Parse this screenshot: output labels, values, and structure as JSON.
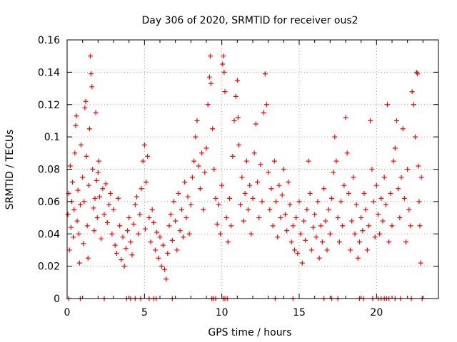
{
  "chart_data": {
    "type": "scatter",
    "title": "Day 306 of 2020, SRMTID for receiver ous2",
    "xlabel": "GPS time / hours",
    "ylabel": "SRMTID / TECUs",
    "xlim": [
      0,
      24
    ],
    "ylim": [
      0,
      0.16
    ],
    "xticks": [
      0,
      5,
      10,
      15,
      20
    ],
    "xtick_labels": [
      "0",
      "5",
      "10",
      "15",
      "20"
    ],
    "yticks": [
      0,
      0.02,
      0.04,
      0.06,
      0.08,
      0.1,
      0.12,
      0.14,
      0.16
    ],
    "ytick_labels": [
      "0",
      "0.02",
      "0.04",
      "0.06",
      "0.08",
      "0.1",
      "0.12",
      "0.14",
      "0.16"
    ],
    "grid": true,
    "marker": "plus",
    "color": "#ff0000",
    "series": [
      {
        "name": "SRMTID",
        "points": [
          [
            0.05,
            0.052
          ],
          [
            0.1,
            0.065
          ],
          [
            0.15,
            0.03
          ],
          [
            0.2,
            0.082
          ],
          [
            0.25,
            0.044
          ],
          [
            0.3,
            0.06
          ],
          [
            0.35,
            0.072
          ],
          [
            0.4,
            0.038
          ],
          [
            0.45,
            0.055
          ],
          [
            0.5,
            0.09
          ],
          [
            0.55,
            0.107
          ],
          [
            0.6,
            0.113
          ],
          [
            0.65,
            0.048
          ],
          [
            0.7,
            0.067
          ],
          [
            0.75,
            0.04
          ],
          [
            0.8,
            0.022
          ],
          [
            0.85,
            0.058
          ],
          [
            0.9,
            0.095
          ],
          [
            1.0,
            0.075
          ],
          [
            1.05,
            0.034
          ],
          [
            1.1,
            0.06
          ],
          [
            1.15,
            0.118
          ],
          [
            1.2,
            0.122
          ],
          [
            1.25,
            0.088
          ],
          [
            1.3,
            0.045
          ],
          [
            1.35,
            0.025
          ],
          [
            1.4,
            0.07
          ],
          [
            1.45,
            0.105
          ],
          [
            1.5,
            0.15
          ],
          [
            1.55,
            0.139
          ],
          [
            1.6,
            0.131
          ],
          [
            1.65,
            0.08
          ],
          [
            1.7,
            0.056
          ],
          [
            1.75,
            0.042
          ],
          [
            1.8,
            0.062
          ],
          [
            1.85,
            0.115
          ],
          [
            1.9,
            0.073
          ],
          [
            1.95,
            0.05
          ],
          [
            2.0,
            0.078
          ],
          [
            2.05,
            0.085
          ],
          [
            2.1,
            0.063
          ],
          [
            2.2,
            0.037
          ],
          [
            2.3,
            0.068
          ],
          [
            2.4,
            0.052
          ],
          [
            2.5,
            0.071
          ],
          [
            2.6,
            0.047
          ],
          [
            2.7,
            0.058
          ],
          [
            2.8,
            0.065
          ],
          [
            2.9,
            0.04
          ],
          [
            3.0,
            0.055
          ],
          [
            3.1,
            0.033
          ],
          [
            3.2,
            0.028
          ],
          [
            3.3,
            0.062
          ],
          [
            3.4,
            0.045
          ],
          [
            3.5,
            0.024
          ],
          [
            3.6,
            0.038
          ],
          [
            3.7,
            0.02
          ],
          [
            3.8,
            0.031
          ],
          [
            3.9,
            0.042
          ],
          [
            4.0,
            0.05
          ],
          [
            4.1,
            0.035
          ],
          [
            4.2,
            0.027
          ],
          [
            4.3,
            0.046
          ],
          [
            4.4,
            0.058
          ],
          [
            4.5,
            0.063
          ],
          [
            4.6,
            0.04
          ],
          [
            4.7,
            0.052
          ],
          [
            4.8,
            0.068
          ],
          [
            4.9,
            0.085
          ],
          [
            5.0,
            0.095
          ],
          [
            5.05,
            0.043
          ],
          [
            5.1,
            0.072
          ],
          [
            5.2,
            0.088
          ],
          [
            5.3,
            0.05
          ],
          [
            5.4,
            0.035
          ],
          [
            5.5,
            0.055
          ],
          [
            5.6,
            0.047
          ],
          [
            5.7,
            0.03
          ],
          [
            5.8,
            0.041
          ],
          [
            5.9,
            0.025
          ],
          [
            6.0,
            0.038
          ],
          [
            6.1,
            0.02
          ],
          [
            6.2,
            0.033
          ],
          [
            6.3,
            0.018
          ],
          [
            6.4,
            0.012
          ],
          [
            6.5,
            0.028
          ],
          [
            6.6,
            0.045
          ],
          [
            6.7,
            0.052
          ],
          [
            6.8,
            0.036
          ],
          [
            6.9,
            0.06
          ],
          [
            7.0,
            0.048
          ],
          [
            7.1,
            0.03
          ],
          [
            7.2,
            0.065
          ],
          [
            7.3,
            0.042
          ],
          [
            7.4,
            0.055
          ],
          [
            7.5,
            0.038
          ],
          [
            7.6,
            0.072
          ],
          [
            7.7,
            0.05
          ],
          [
            7.8,
            0.063
          ],
          [
            7.9,
            0.04
          ],
          [
            8.0,
            0.058
          ],
          [
            8.1,
            0.075
          ],
          [
            8.2,
            0.085
          ],
          [
            8.3,
            0.1
          ],
          [
            8.4,
            0.11
          ],
          [
            8.5,
            0.082
          ],
          [
            8.6,
            0.068
          ],
          [
            8.7,
            0.09
          ],
          [
            8.8,
            0.055
          ],
          [
            8.9,
            0.078
          ],
          [
            9.0,
            0.093
          ],
          [
            9.1,
            0.12
          ],
          [
            9.2,
            0.137
          ],
          [
            9.25,
            0.15
          ],
          [
            9.3,
            0.133
          ],
          [
            9.4,
            0.105
          ],
          [
            9.5,
            0.08
          ],
          [
            9.6,
            0.062
          ],
          [
            9.7,
            0.046
          ],
          [
            9.8,
            0.058
          ],
          [
            9.9,
            0.04
          ],
          [
            10.0,
            0.07
          ],
          [
            10.05,
            0.145
          ],
          [
            10.1,
            0.15
          ],
          [
            10.15,
            0.14
          ],
          [
            10.2,
            0.128
          ],
          [
            10.3,
            0.05
          ],
          [
            10.4,
            0.035
          ],
          [
            10.5,
            0.062
          ],
          [
            10.6,
            0.045
          ],
          [
            10.7,
            0.088
          ],
          [
            10.8,
            0.11
          ],
          [
            10.9,
            0.125
          ],
          [
            11.0,
            0.135
          ],
          [
            11.05,
            0.112
          ],
          [
            11.1,
            0.095
          ],
          [
            11.2,
            0.058
          ],
          [
            11.3,
            0.075
          ],
          [
            11.4,
            0.048
          ],
          [
            11.5,
            0.065
          ],
          [
            11.6,
            0.085
          ],
          [
            11.7,
            0.055
          ],
          [
            11.8,
            0.07
          ],
          [
            11.9,
            0.04
          ],
          [
            12.0,
            0.062
          ],
          [
            12.1,
            0.09
          ],
          [
            12.2,
            0.108
          ],
          [
            12.3,
            0.072
          ],
          [
            12.4,
            0.05
          ],
          [
            12.5,
            0.083
          ],
          [
            12.6,
            0.06
          ],
          [
            12.7,
            0.115
          ],
          [
            12.8,
            0.139
          ],
          [
            12.9,
            0.12
          ],
          [
            13.0,
            0.078
          ],
          [
            13.1,
            0.055
          ],
          [
            13.2,
            0.068
          ],
          [
            13.3,
            0.045
          ],
          [
            13.4,
            0.085
          ],
          [
            13.5,
            0.06
          ],
          [
            13.6,
            0.038
          ],
          [
            13.7,
            0.07
          ],
          [
            13.8,
            0.05
          ],
          [
            13.9,
            0.064
          ],
          [
            14.0,
            0.08
          ],
          [
            14.1,
            0.052
          ],
          [
            14.2,
            0.042
          ],
          [
            14.3,
            0.072
          ],
          [
            14.4,
            0.058
          ],
          [
            14.5,
            0.035
          ],
          [
            14.6,
            0.045
          ],
          [
            14.7,
            0.03
          ],
          [
            14.8,
            0.05
          ],
          [
            14.9,
            0.028
          ],
          [
            15.0,
            0.06
          ],
          [
            15.1,
            0.04
          ],
          [
            15.2,
            0.022
          ],
          [
            15.3,
            0.048
          ],
          [
            15.4,
            0.036
          ],
          [
            15.5,
            0.055
          ],
          [
            15.6,
            0.085
          ],
          [
            15.7,
            0.065
          ],
          [
            15.8,
            0.03
          ],
          [
            15.9,
            0.044
          ],
          [
            16.0,
            0.052
          ],
          [
            16.1,
            0.038
          ],
          [
            16.2,
            0.06
          ],
          [
            16.3,
            0.025
          ],
          [
            16.4,
            0.045
          ],
          [
            16.5,
            0.035
          ],
          [
            16.6,
            0.068
          ],
          [
            16.7,
            0.048
          ],
          [
            16.8,
            0.03
          ],
          [
            16.9,
            0.055
          ],
          [
            17.0,
            0.04
          ],
          [
            17.1,
            0.062
          ],
          [
            17.2,
            0.078
          ],
          [
            17.3,
            0.1
          ],
          [
            17.4,
            0.085
          ],
          [
            17.5,
            0.05
          ],
          [
            17.6,
            0.035
          ],
          [
            17.7,
            0.06
          ],
          [
            17.8,
            0.045
          ],
          [
            17.9,
            0.07
          ],
          [
            18.0,
            0.112
          ],
          [
            18.1,
            0.09
          ],
          [
            18.2,
            0.065
          ],
          [
            18.3,
            0.03
          ],
          [
            18.4,
            0.048
          ],
          [
            18.5,
            0.075
          ],
          [
            18.6,
            0.04
          ],
          [
            18.7,
            0.058
          ],
          [
            18.8,
            0.025
          ],
          [
            18.9,
            0.035
          ],
          [
            19.0,
            0.05
          ],
          [
            19.1,
            0.042
          ],
          [
            19.2,
            0.065
          ],
          [
            19.3,
            0.055
          ],
          [
            19.4,
            0.03
          ],
          [
            19.5,
            0.045
          ],
          [
            19.6,
            0.11
          ],
          [
            19.7,
            0.08
          ],
          [
            19.8,
            0.06
          ],
          [
            19.9,
            0.038
          ],
          [
            20.0,
            0.07
          ],
          [
            20.1,
            0.052
          ],
          [
            20.2,
            0.04
          ],
          [
            20.3,
            0.062
          ],
          [
            20.4,
            0.048
          ],
          [
            20.5,
            0.075
          ],
          [
            20.6,
            0.058
          ],
          [
            20.7,
            0.12
          ],
          [
            20.8,
            0.035
          ],
          [
            20.9,
            0.065
          ],
          [
            21.0,
            0.045
          ],
          [
            21.1,
            0.085
          ],
          [
            21.2,
            0.093
          ],
          [
            21.3,
            0.11
          ],
          [
            21.4,
            0.068
          ],
          [
            21.5,
            0.05
          ],
          [
            21.6,
            0.075
          ],
          [
            21.7,
            0.105
          ],
          [
            21.8,
            0.062
          ],
          [
            21.9,
            0.035
          ],
          [
            22.0,
            0.08
          ],
          [
            22.1,
            0.055
          ],
          [
            22.2,
            0.045
          ],
          [
            22.3,
            0.128
          ],
          [
            22.4,
            0.12
          ],
          [
            22.5,
            0.1
          ],
          [
            22.6,
            0.14
          ],
          [
            22.65,
            0.139
          ],
          [
            22.7,
            0.082
          ],
          [
            22.75,
            0.06
          ],
          [
            22.8,
            0.045
          ],
          [
            22.85,
            0.022
          ],
          [
            22.9,
            0.075
          ],
          [
            0.1,
            0.0
          ],
          [
            0.85,
            0.0
          ],
          [
            2.4,
            0.0
          ],
          [
            3.85,
            0.0
          ],
          [
            4.1,
            0.0
          ],
          [
            4.4,
            0.0
          ],
          [
            4.75,
            0.0
          ],
          [
            5.3,
            0.0
          ],
          [
            5.6,
            0.0
          ],
          [
            5.75,
            0.0
          ],
          [
            6.8,
            0.0
          ],
          [
            9.35,
            0.0
          ],
          [
            9.45,
            0.0
          ],
          [
            9.6,
            0.0
          ],
          [
            10.1,
            0.0
          ],
          [
            10.2,
            0.0
          ],
          [
            10.35,
            0.0
          ],
          [
            13.45,
            0.0
          ],
          [
            14.6,
            0.0
          ],
          [
            16.6,
            0.0
          ],
          [
            17.1,
            0.0
          ],
          [
            17.5,
            0.0
          ],
          [
            18.9,
            0.0
          ],
          [
            19.15,
            0.0
          ],
          [
            19.75,
            0.0
          ],
          [
            20.1,
            0.0
          ],
          [
            20.3,
            0.0
          ],
          [
            20.5,
            0.0
          ],
          [
            20.65,
            0.0
          ],
          [
            20.8,
            0.0
          ],
          [
            21.2,
            0.0
          ],
          [
            21.55,
            0.0
          ],
          [
            22.25,
            0.0
          ],
          [
            22.95,
            0.0
          ]
        ]
      }
    ]
  }
}
